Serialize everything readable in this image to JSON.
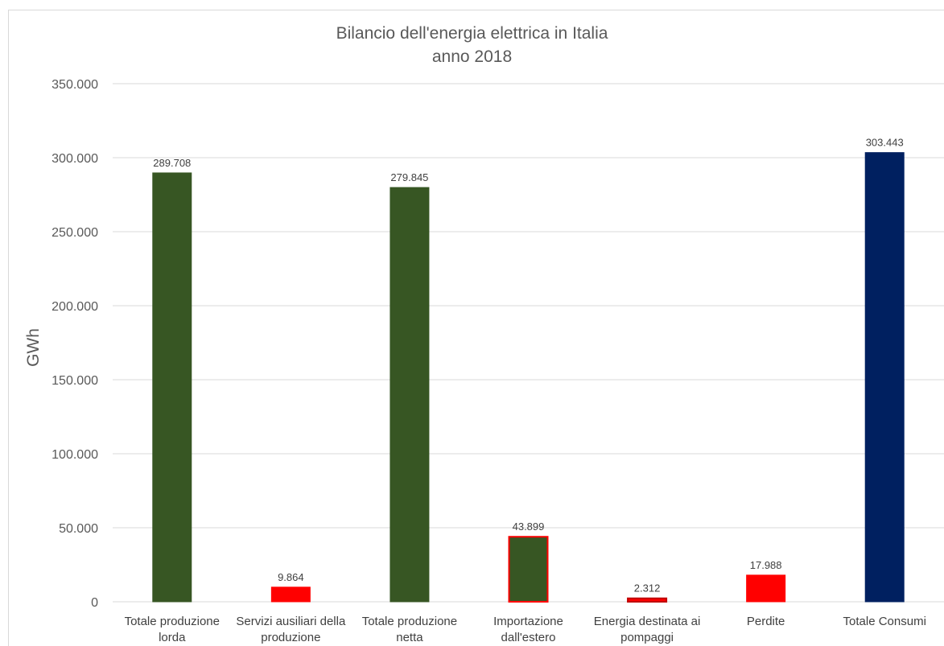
{
  "chart_data": {
    "type": "bar",
    "title": "Bilancio dell'energia elettrica in Italia",
    "subtitle": "anno 2018",
    "ylabel": "GWh",
    "xlabel": "",
    "ylim": [
      0,
      350000
    ],
    "yticks": [
      0,
      50000,
      100000,
      150000,
      200000,
      250000,
      300000,
      350000
    ],
    "ytick_labels": [
      "0",
      "50.000",
      "100.000",
      "150.000",
      "200.000",
      "250.000",
      "300.000",
      "350.000"
    ],
    "grid": true,
    "legend": "none",
    "categories": [
      [
        "Totale produzione",
        "lorda"
      ],
      [
        "Servizi ausiliari della",
        "produzione"
      ],
      [
        "Totale produzione",
        "netta"
      ],
      [
        "Importazione",
        "dall'estero"
      ],
      [
        "Energia destinata ai",
        "pompaggi"
      ],
      [
        "Perdite"
      ],
      [
        "Totale Consumi"
      ]
    ],
    "values": [
      289708,
      9864,
      279845,
      43899,
      2312,
      17988,
      303443
    ],
    "value_labels": [
      "289.708",
      "9.864",
      "279.845",
      "43.899",
      "2.312",
      "17.988",
      "303.443"
    ],
    "bar_colors": [
      "#375623",
      "#ff0000",
      "#375623",
      "#375623",
      "#ff0000",
      "#ff0000",
      "#002060"
    ],
    "bar_borders": [
      "#375623",
      "#ff0000",
      "#375623",
      "#ff0000",
      "#c00000",
      "#ff0000",
      "#002060"
    ]
  }
}
